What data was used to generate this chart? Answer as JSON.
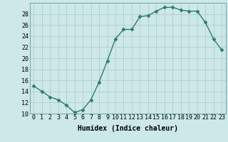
{
  "x": [
    0,
    1,
    2,
    3,
    4,
    5,
    6,
    7,
    8,
    9,
    10,
    11,
    12,
    13,
    14,
    15,
    16,
    17,
    18,
    19,
    20,
    21,
    22,
    23
  ],
  "y": [
    15,
    14,
    13,
    12.5,
    11.5,
    10.2,
    10.7,
    12.5,
    15.7,
    19.5,
    23.5,
    25.2,
    25.2,
    27.5,
    27.7,
    28.5,
    29.2,
    29.2,
    28.7,
    28.5,
    28.5,
    26.5,
    23.5,
    21.5
  ],
  "xlabel": "Humidex (Indice chaleur)",
  "ylim": [
    10,
    30
  ],
  "xlim": [
    -0.5,
    23.5
  ],
  "yticks": [
    10,
    12,
    14,
    16,
    18,
    20,
    22,
    24,
    26,
    28
  ],
  "xticks": [
    0,
    1,
    2,
    3,
    4,
    5,
    6,
    7,
    8,
    9,
    10,
    11,
    12,
    13,
    14,
    15,
    16,
    17,
    18,
    19,
    20,
    21,
    22,
    23
  ],
  "line_color": "#2d7d6e",
  "marker": "D",
  "marker_size": 2.5,
  "bg_color": "#cce8e8",
  "grid_color": "#b0cccc",
  "tick_fontsize": 6,
  "xlabel_fontsize": 7,
  "linewidth": 1.0
}
